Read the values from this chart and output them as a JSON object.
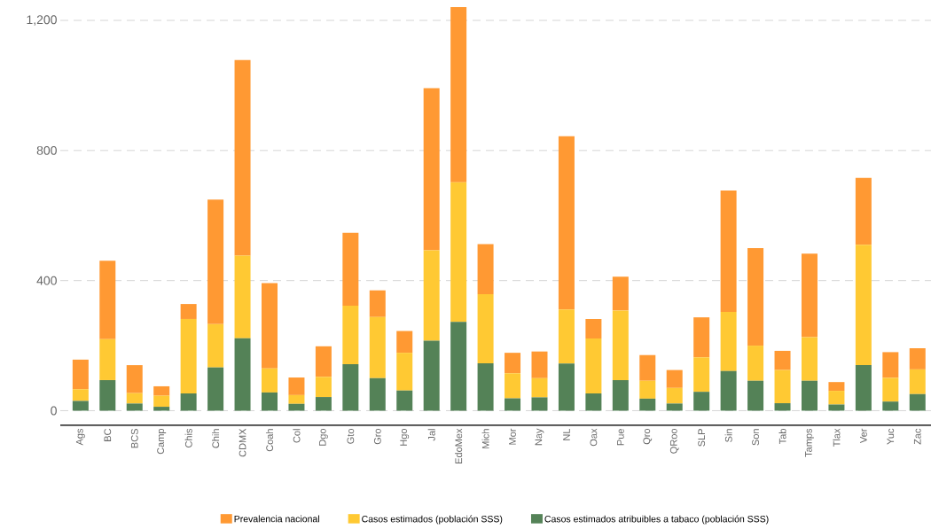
{
  "chart_data": {
    "type": "bar",
    "stacked": true,
    "categories": [
      "Ags",
      "BC",
      "BCS",
      "Camp",
      "Chis",
      "Chih",
      "CDMX",
      "Coah",
      "Col",
      "Dgo",
      "Gto",
      "Gro",
      "Hgo",
      "Jal",
      "EdoMex",
      "Mich",
      "Mor",
      "Nay",
      "NL",
      "Oax",
      "Pue",
      "Qro",
      "QRoo",
      "SLP",
      "Sin",
      "Son",
      "Tab",
      "Tamps",
      "Tlax",
      "Ver",
      "Yuc",
      "Zac"
    ],
    "series": [
      {
        "name": "Casos estimados atribuibles a tabaco (población SSS)",
        "color": "#548257",
        "values": [
          30,
          94,
          22,
          12,
          53,
          133,
          223,
          56,
          21,
          42,
          143,
          100,
          62,
          215,
          273,
          146,
          38,
          41,
          145,
          53,
          94,
          37,
          22,
          58,
          122,
          92,
          23,
          92,
          19,
          140,
          28,
          51
        ]
      },
      {
        "name": "Casos estimados (población SSS)",
        "color": "#ffc933",
        "values": [
          36,
          126,
          32,
          34,
          229,
          133,
          254,
          74,
          27,
          62,
          180,
          188,
          116,
          278,
          429,
          212,
          77,
          59,
          166,
          169,
          214,
          55,
          48,
          106,
          182,
          108,
          102,
          134,
          42,
          370,
          73,
          76
        ]
      },
      {
        "name": "Prevalencia nacional",
        "color": "#ff9933",
        "values": [
          91,
          241,
          86,
          29,
          46,
          383,
          601,
          262,
          54,
          94,
          224,
          82,
          67,
          499,
          539,
          154,
          63,
          82,
          533,
          60,
          104,
          79,
          55,
          123,
          373,
          300,
          59,
          257,
          27,
          206,
          79,
          65
        ]
      }
    ],
    "ylim": [
      -45,
      1241
    ],
    "yticks": [
      0,
      400,
      800,
      {
        "value": 1200,
        "label": "1,200"
      }
    ],
    "grid": "y",
    "legend": "bottom"
  }
}
